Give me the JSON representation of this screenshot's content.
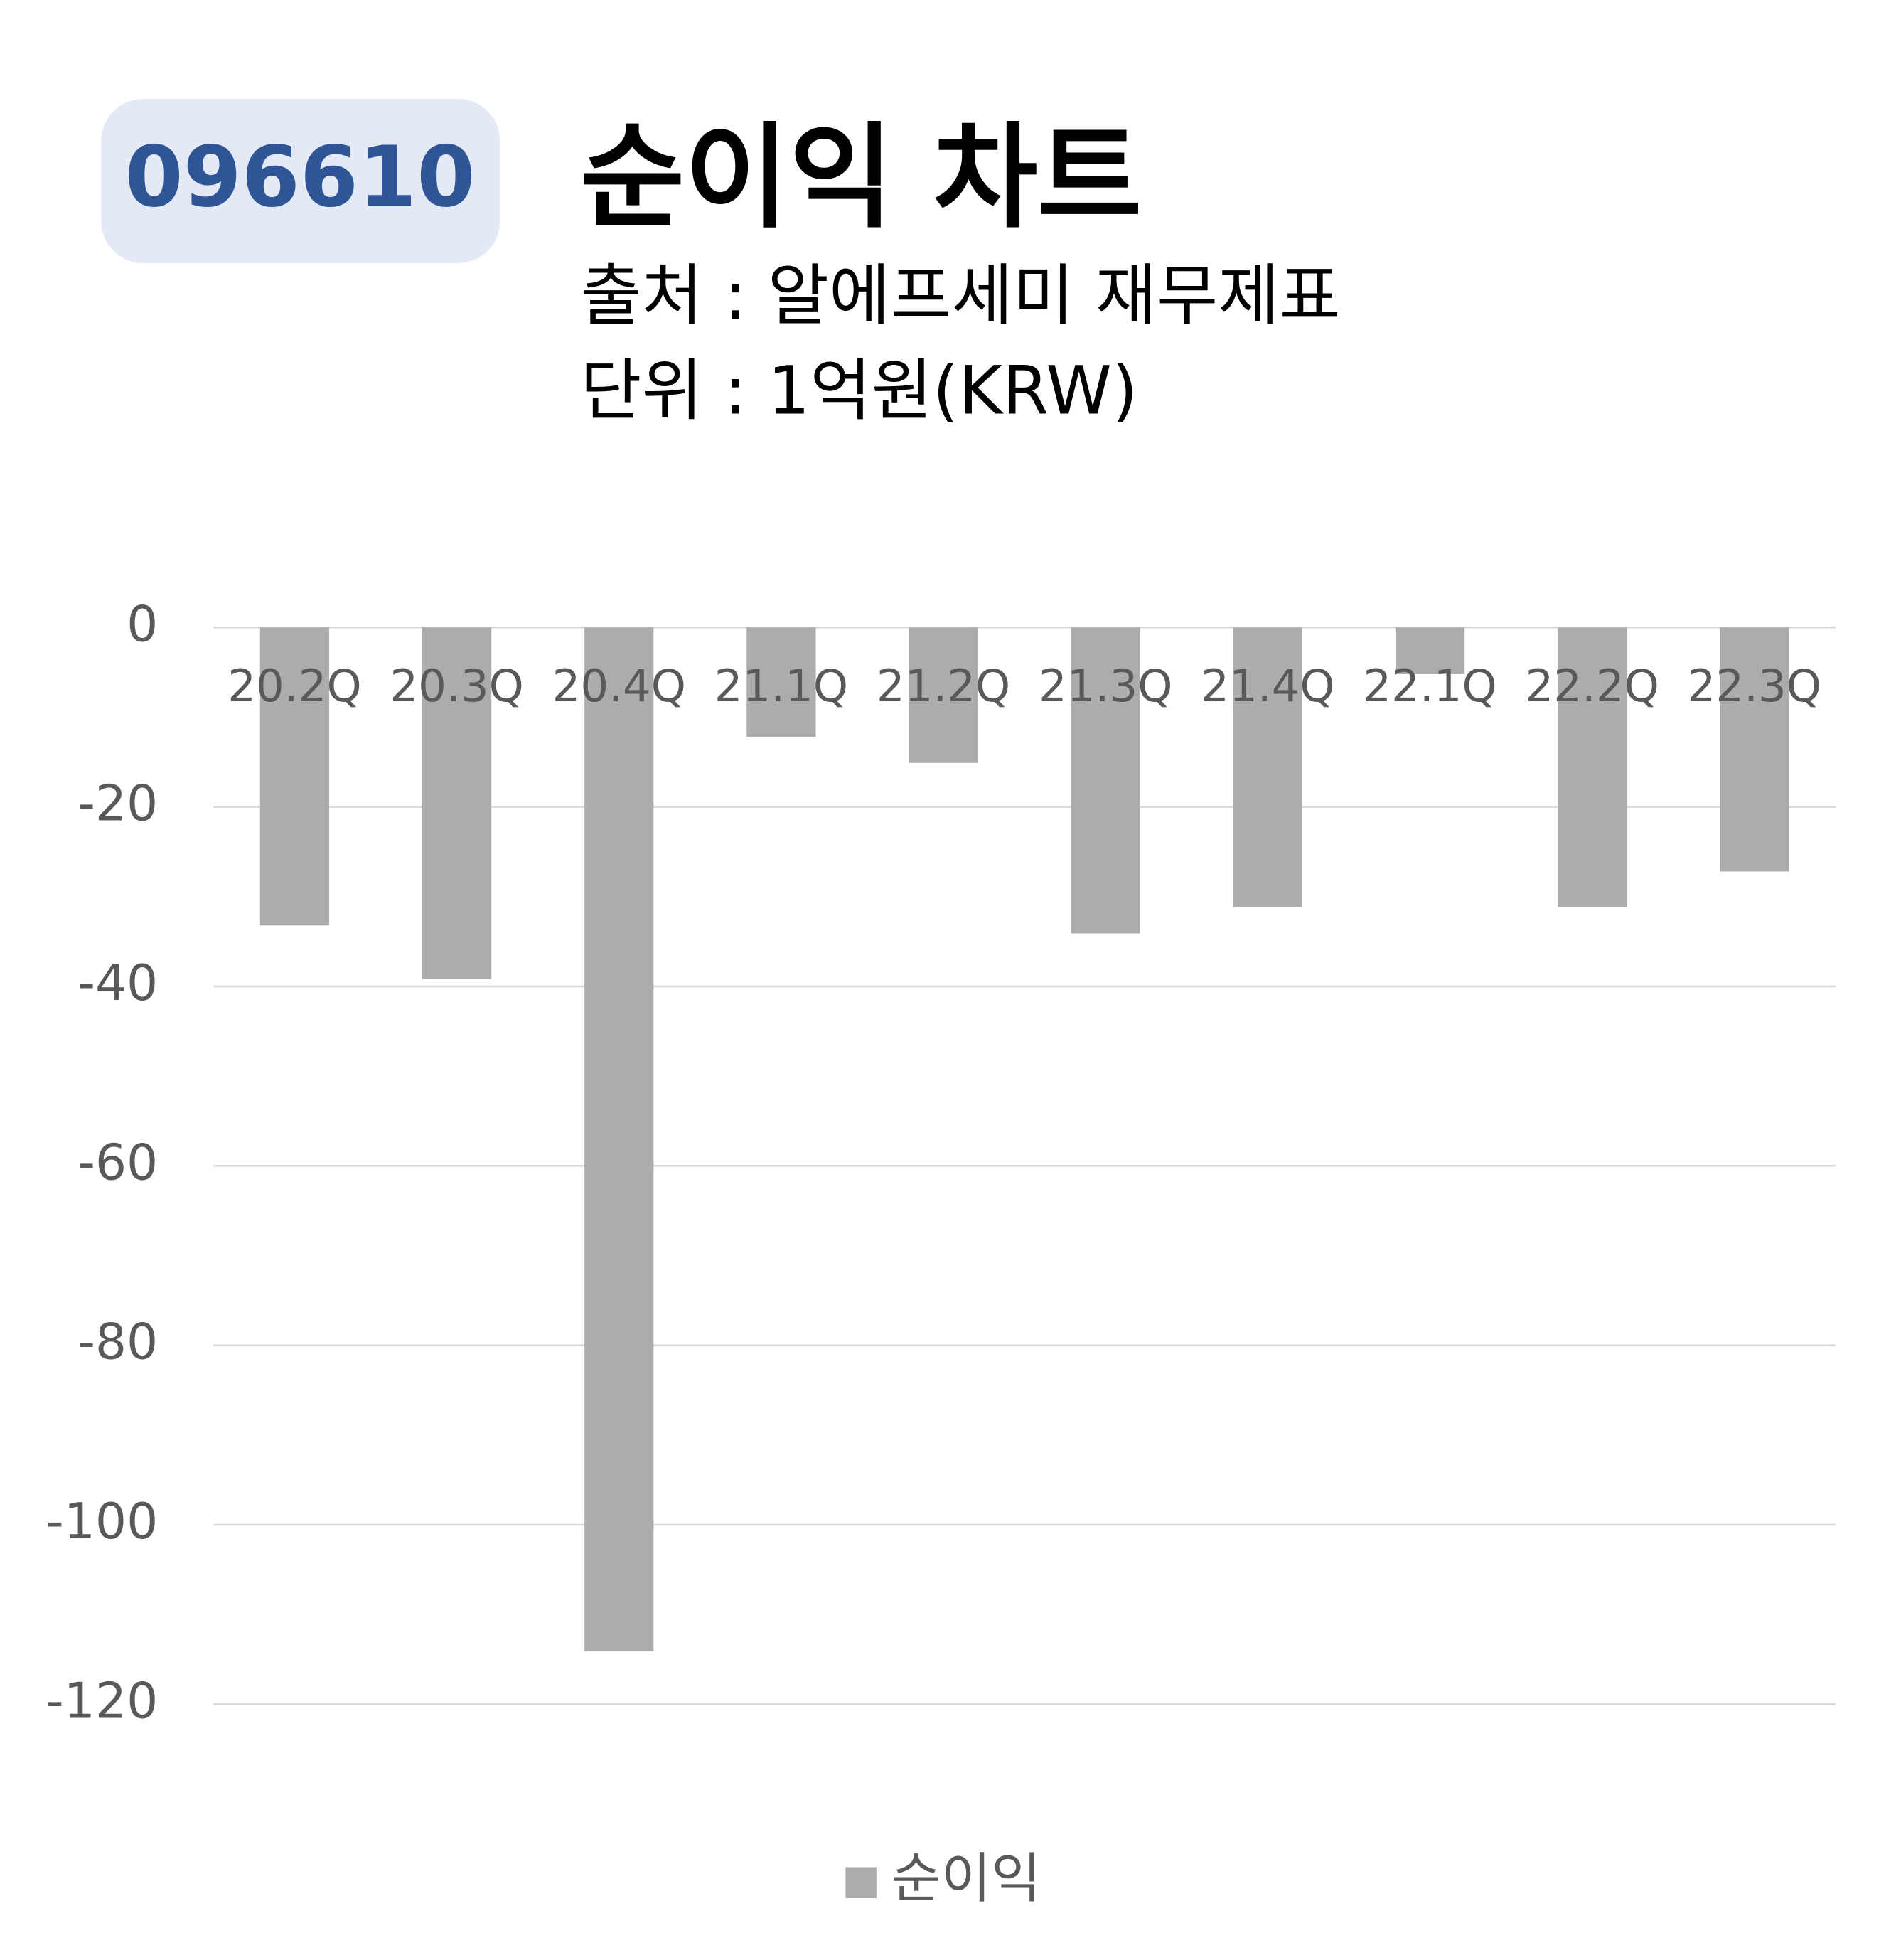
{
  "chart_data": {
    "type": "bar",
    "ticker": "096610",
    "title": "순이익 차트",
    "subtitle": [
      "출처 : 알에프세미 재무제표",
      "단위 : 1억원(KRW)"
    ],
    "categories": [
      "20.2Q",
      "20.3Q",
      "20.4Q",
      "21.1Q",
      "21.2Q",
      "21.3Q",
      "21.4Q",
      "22.1Q",
      "22.2Q",
      "22.3Q"
    ],
    "series": [
      {
        "name": "순이익",
        "color": "#aeabab",
        "values": [
          -33.2,
          -39.2,
          -114.1,
          -12.2,
          -15.1,
          -34.1,
          -31.2,
          -5.2,
          -31.2,
          -27.2
        ]
      }
    ],
    "ylim": [
      -120,
      0
    ],
    "yticks": [
      0,
      -20,
      -40,
      -60,
      -80,
      -100,
      -120
    ],
    "grid": true,
    "legend": "bottom"
  }
}
